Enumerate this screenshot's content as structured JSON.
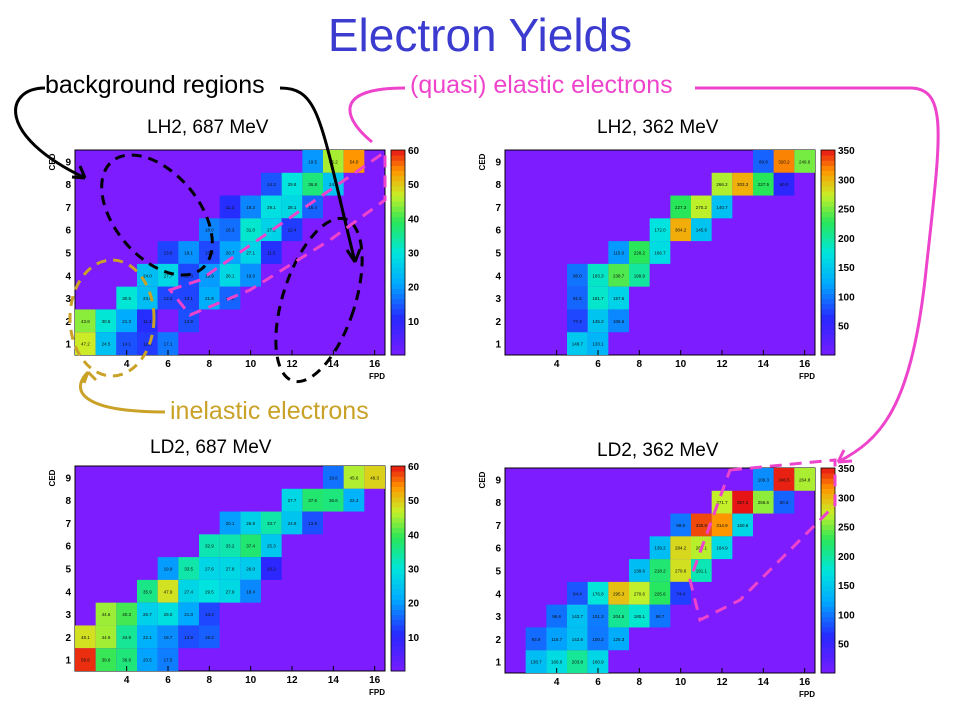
{
  "slide": {
    "title": "Electron Yields"
  },
  "annotations": {
    "background": "background regions",
    "elastic": "(quasi) elastic electrons",
    "inelastic": "inelastic electrons"
  },
  "colors": {
    "title": "#3b3bd0",
    "background_note": "#000000",
    "elastic_note": "#ee44cc",
    "inelastic_note": "#c9a227",
    "default_cell": "#7c1cff"
  },
  "chart_data": [
    {
      "type": "heatmap",
      "label": "LH2, 687 MeV",
      "xlabel": "FPD",
      "ylabel": "CED",
      "xlim": [
        2,
        17
      ],
      "ylim": [
        0.5,
        9.5
      ],
      "x_ticks": [
        4,
        6,
        8,
        10,
        12,
        14,
        16
      ],
      "y_ticks": [
        1,
        2,
        3,
        4,
        5,
        6,
        7,
        8,
        9
      ],
      "colorbar": {
        "max": 60,
        "ticks": [
          10,
          20,
          30,
          40,
          50,
          60
        ]
      },
      "cells": [
        {
          "ced": 9,
          "fpd": 14,
          "v": 45.2
        },
        {
          "ced": 9,
          "fpd": 15,
          "v": 54.0
        },
        {
          "ced": 9,
          "fpd": 13,
          "v": 19.5
        },
        {
          "ced": 8,
          "fpd": 11,
          "v": 14.3
        },
        {
          "ced": 8,
          "fpd": 12,
          "v": 29.8
        },
        {
          "ced": 8,
          "fpd": 13,
          "v": 36.8
        },
        {
          "ced": 8,
          "fpd": 14,
          "v": 24.9
        },
        {
          "ced": 7,
          "fpd": 9,
          "v": 11.3
        },
        {
          "ced": 7,
          "fpd": 10,
          "v": 18.2
        },
        {
          "ced": 7,
          "fpd": 11,
          "v": 29.1
        },
        {
          "ced": 7,
          "fpd": 12,
          "v": 28.1
        },
        {
          "ced": 7,
          "fpd": 13,
          "v": 15.4
        },
        {
          "ced": 6,
          "fpd": 8,
          "v": 18.0
        },
        {
          "ced": 6,
          "fpd": 9,
          "v": 16.3
        },
        {
          "ced": 6,
          "fpd": 10,
          "v": 31.0
        },
        {
          "ced": 6,
          "fpd": 11,
          "v": 27.2
        },
        {
          "ced": 6,
          "fpd": 12,
          "v": 12.4
        },
        {
          "ced": 5,
          "fpd": 6,
          "v": 13.0
        },
        {
          "ced": 5,
          "fpd": 7,
          "v": 19.1
        },
        {
          "ced": 5,
          "fpd": 8,
          "v": 13.4
        },
        {
          "ced": 5,
          "fpd": 9,
          "v": 20.7
        },
        {
          "ced": 5,
          "fpd": 10,
          "v": 27.1
        },
        {
          "ced": 5,
          "fpd": 11,
          "v": 11.5
        },
        {
          "ced": 4,
          "fpd": 5,
          "v": 24.0
        },
        {
          "ced": 4,
          "fpd": 6,
          "v": 27.7
        },
        {
          "ced": 4,
          "fpd": 7,
          "v": 13.3
        },
        {
          "ced": 4,
          "fpd": 8,
          "v": 19.9
        },
        {
          "ced": 4,
          "fpd": 9,
          "v": 28.1
        },
        {
          "ced": 4,
          "fpd": 10,
          "v": 19.0
        },
        {
          "ced": 3,
          "fpd": 4,
          "v": 30.5
        },
        {
          "ced": 3,
          "fpd": 5,
          "v": 23.8
        },
        {
          "ced": 3,
          "fpd": 6,
          "v": 13.2
        },
        {
          "ced": 3,
          "fpd": 7,
          "v": 13.1
        },
        {
          "ced": 3,
          "fpd": 8,
          "v": 21.8
        },
        {
          "ced": 3,
          "fpd": 9,
          "v": 15.5
        },
        {
          "ced": 2,
          "fpd": 2,
          "v": 43.8
        },
        {
          "ced": 2,
          "fpd": 3,
          "v": 30.5
        },
        {
          "ced": 2,
          "fpd": 4,
          "v": 21.3
        },
        {
          "ced": 2,
          "fpd": 5,
          "v": 11.3
        },
        {
          "ced": 2,
          "fpd": 7,
          "v": 13.9
        },
        {
          "ced": 1,
          "fpd": 2,
          "v": 47.2
        },
        {
          "ced": 1,
          "fpd": 3,
          "v": 24.5
        },
        {
          "ced": 1,
          "fpd": 4,
          "v": 14.1
        },
        {
          "ced": 1,
          "fpd": 5,
          "v": 12.3
        },
        {
          "ced": 1,
          "fpd": 6,
          "v": 17.1
        }
      ]
    },
    {
      "type": "heatmap",
      "label": "LH2, 362 MeV",
      "xlabel": "FPD",
      "ylabel": "CED",
      "xlim": [
        2,
        17
      ],
      "ylim": [
        0.5,
        9.5
      ],
      "x_ticks": [
        4,
        6,
        8,
        10,
        12,
        14,
        16
      ],
      "y_ticks": [
        1,
        2,
        3,
        4,
        5,
        6,
        7,
        8,
        9
      ],
      "colorbar": {
        "max": 350,
        "ticks": [
          50,
          100,
          150,
          200,
          250,
          300,
          350
        ]
      },
      "cells": [
        {
          "ced": 9,
          "fpd": 14,
          "v": 89.8
        },
        {
          "ced": 9,
          "fpd": 15,
          "v": 320.2
        },
        {
          "ced": 9,
          "fpd": 16,
          "v": 249.6
        },
        {
          "ced": 8,
          "fpd": 12,
          "v": 266.2
        },
        {
          "ced": 8,
          "fpd": 13,
          "v": 303.3
        },
        {
          "ced": 8,
          "fpd": 14,
          "v": 227.5
        },
        {
          "ced": 8,
          "fpd": 15,
          "v": 60.0
        },
        {
          "ced": 7,
          "fpd": 10,
          "v": 227.3
        },
        {
          "ced": 7,
          "fpd": 11,
          "v": 270.2
        },
        {
          "ced": 7,
          "fpd": 12,
          "v": 140.7
        },
        {
          "ced": 6,
          "fpd": 9,
          "v": 172.0
        },
        {
          "ced": 6,
          "fpd": 10,
          "v": 304.2
        },
        {
          "ced": 6,
          "fpd": 11,
          "v": 145.6
        },
        {
          "ced": 5,
          "fpd": 7,
          "v": 115.0
        },
        {
          "ced": 5,
          "fpd": 8,
          "v": 228.2
        },
        {
          "ced": 5,
          "fpd": 9,
          "v": 166.7
        },
        {
          "ced": 4,
          "fpd": 5,
          "v": 98.0
        },
        {
          "ced": 4,
          "fpd": 6,
          "v": 183.3
        },
        {
          "ced": 4,
          "fpd": 7,
          "v": 238.7
        },
        {
          "ced": 4,
          "fpd": 8,
          "v": 199.9
        },
        {
          "ced": 3,
          "fpd": 5,
          "v": 91.6
        },
        {
          "ced": 3,
          "fpd": 6,
          "v": 181.7
        },
        {
          "ced": 3,
          "fpd": 7,
          "v": 157.6
        },
        {
          "ced": 2,
          "fpd": 5,
          "v": 77.4
        },
        {
          "ced": 2,
          "fpd": 6,
          "v": 145.2
        },
        {
          "ced": 2,
          "fpd": 7,
          "v": 106.6
        },
        {
          "ced": 1,
          "fpd": 5,
          "v": 148.7
        },
        {
          "ced": 1,
          "fpd": 6,
          "v": 133.1
        }
      ]
    },
    {
      "type": "heatmap",
      "label": "LD2, 687 MeV",
      "xlabel": "FPD",
      "ylabel": "CED",
      "xlim": [
        2,
        17
      ],
      "ylim": [
        0.5,
        9.5
      ],
      "x_ticks": [
        4,
        6,
        8,
        10,
        12,
        14,
        16
      ],
      "y_ticks": [
        1,
        2,
        3,
        4,
        5,
        6,
        7,
        8,
        9
      ],
      "colorbar": {
        "max": 60,
        "ticks": [
          10,
          20,
          30,
          40,
          50,
          60
        ]
      },
      "cells": [
        {
          "ced": 9,
          "fpd": 14,
          "v": 16.6
        },
        {
          "ced": 9,
          "fpd": 15,
          "v": 45.6
        },
        {
          "ced": 9,
          "fpd": 16,
          "v": 49.3
        },
        {
          "ced": 8,
          "fpd": 12,
          "v": 27.7
        },
        {
          "ced": 8,
          "fpd": 13,
          "v": 37.6
        },
        {
          "ced": 8,
          "fpd": 14,
          "v": 36.6
        },
        {
          "ced": 8,
          "fpd": 15,
          "v": 22.4
        },
        {
          "ced": 7,
          "fpd": 9,
          "v": 20.1
        },
        {
          "ced": 7,
          "fpd": 10,
          "v": 26.8
        },
        {
          "ced": 7,
          "fpd": 11,
          "v": 33.7
        },
        {
          "ced": 7,
          "fpd": 12,
          "v": 24.9
        },
        {
          "ced": 7,
          "fpd": 13,
          "v": 13.9
        },
        {
          "ced": 6,
          "fpd": 8,
          "v": 32.9
        },
        {
          "ced": 6,
          "fpd": 9,
          "v": 33.2
        },
        {
          "ced": 6,
          "fpd": 10,
          "v": 37.4
        },
        {
          "ced": 6,
          "fpd": 11,
          "v": 25.3
        },
        {
          "ced": 5,
          "fpd": 6,
          "v": 19.9
        },
        {
          "ced": 5,
          "fpd": 7,
          "v": 33.5
        },
        {
          "ced": 5,
          "fpd": 8,
          "v": 27.6
        },
        {
          "ced": 5,
          "fpd": 9,
          "v": 27.8
        },
        {
          "ced": 5,
          "fpd": 10,
          "v": 26.0
        },
        {
          "ced": 5,
          "fpd": 11,
          "v": 10.2
        },
        {
          "ced": 4,
          "fpd": 5,
          "v": 35.9
        },
        {
          "ced": 4,
          "fpd": 6,
          "v": 47.9
        },
        {
          "ced": 4,
          "fpd": 7,
          "v": 27.4
        },
        {
          "ced": 4,
          "fpd": 8,
          "v": 29.5
        },
        {
          "ced": 4,
          "fpd": 9,
          "v": 27.9
        },
        {
          "ced": 4,
          "fpd": 10,
          "v": 18.4
        },
        {
          "ced": 3,
          "fpd": 3,
          "v": 44.6
        },
        {
          "ced": 3,
          "fpd": 4,
          "v": 40.3
        },
        {
          "ced": 3,
          "fpd": 5,
          "v": 26.7
        },
        {
          "ced": 3,
          "fpd": 6,
          "v": 29.0
        },
        {
          "ced": 3,
          "fpd": 7,
          "v": 21.0
        },
        {
          "ced": 3,
          "fpd": 8,
          "v": 13.2
        },
        {
          "ced": 2,
          "fpd": 2,
          "v": 48.1
        },
        {
          "ced": 2,
          "fpd": 3,
          "v": 44.9
        },
        {
          "ced": 2,
          "fpd": 4,
          "v": 34.9
        },
        {
          "ced": 2,
          "fpd": 5,
          "v": 22.1
        },
        {
          "ced": 2,
          "fpd": 6,
          "v": 18.7
        },
        {
          "ced": 2,
          "fpd": 7,
          "v": 13.9
        },
        {
          "ced": 2,
          "fpd": 8,
          "v": 15.2
        },
        {
          "ced": 1,
          "fpd": 2,
          "v": 58.8
        },
        {
          "ced": 1,
          "fpd": 3,
          "v": 39.8
        },
        {
          "ced": 1,
          "fpd": 4,
          "v": 36.8
        },
        {
          "ced": 1,
          "fpd": 5,
          "v": 20.5
        },
        {
          "ced": 1,
          "fpd": 6,
          "v": 17.5
        }
      ]
    },
    {
      "type": "heatmap",
      "label": "LD2, 362 MeV",
      "xlabel": "FPD",
      "ylabel": "CED",
      "xlim": [
        2,
        17
      ],
      "ylim": [
        0.5,
        9.5
      ],
      "x_ticks": [
        4,
        6,
        8,
        10,
        12,
        14,
        16
      ],
      "y_ticks": [
        1,
        2,
        3,
        4,
        5,
        6,
        7,
        8,
        9
      ],
      "colorbar": {
        "max": 350,
        "ticks": [
          50,
          100,
          150,
          200,
          250,
          300,
          350
        ]
      },
      "cells": [
        {
          "ced": 9,
          "fpd": 14,
          "v": 109.3
        },
        {
          "ced": 9,
          "fpd": 15,
          "v": 346.5
        },
        {
          "ced": 9,
          "fpd": 16,
          "v": 264.8
        },
        {
          "ced": 8,
          "fpd": 12,
          "v": 271.7
        },
        {
          "ced": 8,
          "fpd": 13,
          "v": 357.3
        },
        {
          "ced": 8,
          "fpd": 14,
          "v": 256.6
        },
        {
          "ced": 8,
          "fpd": 15,
          "v": 90.3
        },
        {
          "ced": 7,
          "fpd": 10,
          "v": 99.8
        },
        {
          "ced": 7,
          "fpd": 11,
          "v": 335.8
        },
        {
          "ced": 7,
          "fpd": 12,
          "v": 314.9
        },
        {
          "ced": 7,
          "fpd": 13,
          "v": 160.6
        },
        {
          "ced": 6,
          "fpd": 9,
          "v": 139.2
        },
        {
          "ced": 6,
          "fpd": 10,
          "v": 284.2
        },
        {
          "ced": 6,
          "fpd": 11,
          "v": 268.1
        },
        {
          "ced": 6,
          "fpd": 12,
          "v": 164.9
        },
        {
          "ced": 5,
          "fpd": 8,
          "v": 139.6
        },
        {
          "ced": 5,
          "fpd": 9,
          "v": 218.2
        },
        {
          "ced": 5,
          "fpd": 10,
          "v": 279.8
        },
        {
          "ced": 5,
          "fpd": 11,
          "v": 191.1
        },
        {
          "ced": 4,
          "fpd": 5,
          "v": 84.4
        },
        {
          "ced": 4,
          "fpd": 6,
          "v": 176.8
        },
        {
          "ced": 4,
          "fpd": 7,
          "v": 295.3
        },
        {
          "ced": 4,
          "fpd": 8,
          "v": 270.6
        },
        {
          "ced": 4,
          "fpd": 9,
          "v": 225.6
        },
        {
          "ced": 4,
          "fpd": 10,
          "v": 74.4
        },
        {
          "ced": 3,
          "fpd": 4,
          "v": 96.6
        },
        {
          "ced": 3,
          "fpd": 5,
          "v": 142.7
        },
        {
          "ced": 3,
          "fpd": 6,
          "v": 101.3
        },
        {
          "ced": 3,
          "fpd": 7,
          "v": 204.5
        },
        {
          "ced": 3,
          "fpd": 8,
          "v": 180.1
        },
        {
          "ced": 3,
          "fpd": 9,
          "v": 98.7
        },
        {
          "ced": 2,
          "fpd": 3,
          "v": 93.9
        },
        {
          "ced": 2,
          "fpd": 4,
          "v": 118.7
        },
        {
          "ced": 2,
          "fpd": 5,
          "v": 142.6
        },
        {
          "ced": 2,
          "fpd": 6,
          "v": 100.2
        },
        {
          "ced": 2,
          "fpd": 7,
          "v": 125.3
        },
        {
          "ced": 1,
          "fpd": 3,
          "v": 138.7
        },
        {
          "ced": 1,
          "fpd": 4,
          "v": 166.0
        },
        {
          "ced": 1,
          "fpd": 5,
          "v": 203.8
        },
        {
          "ced": 1,
          "fpd": 6,
          "v": 160.9
        }
      ]
    }
  ]
}
